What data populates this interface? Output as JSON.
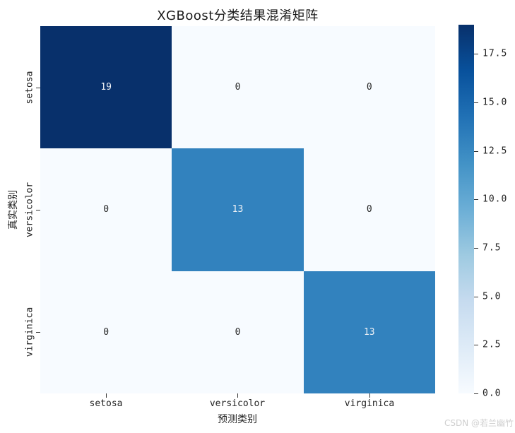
{
  "title": "XGBoost分类结果混淆矩阵",
  "watermark": "CSDN @若兰幽竹",
  "chart_data": {
    "type": "heatmap",
    "title": "XGBoost分类结果混淆矩阵",
    "xlabel": "预测类别",
    "ylabel": "真实类别",
    "x_tick_labels": [
      "setosa",
      "versicolor",
      "virginica"
    ],
    "y_tick_labels": [
      "setosa",
      "versicolor",
      "virginica"
    ],
    "matrix": [
      [
        19,
        0,
        0
      ],
      [
        0,
        13,
        0
      ],
      [
        0,
        0,
        13
      ]
    ],
    "vmin": 0,
    "vmax": 19,
    "colormap": "Blues",
    "cells": [
      {
        "value": "19",
        "bg": "#08306b",
        "fg": "#f0f2f6"
      },
      {
        "value": "0",
        "bg": "#f7fbff",
        "fg": "#262626"
      },
      {
        "value": "0",
        "bg": "#f7fbff",
        "fg": "#262626"
      },
      {
        "value": "0",
        "bg": "#f7fbff",
        "fg": "#262626"
      },
      {
        "value": "13",
        "bg": "#3282be",
        "fg": "#f0f2f6"
      },
      {
        "value": "0",
        "bg": "#f7fbff",
        "fg": "#262626"
      },
      {
        "value": "0",
        "bg": "#f7fbff",
        "fg": "#262626"
      },
      {
        "value": "0",
        "bg": "#f7fbff",
        "fg": "#262626"
      },
      {
        "value": "13",
        "bg": "#3282be",
        "fg": "#f0f2f6"
      }
    ],
    "colorbar": {
      "vmax": 19,
      "tick_values": [
        0,
        2.5,
        5,
        7.5,
        10,
        12.5,
        15,
        17.5
      ],
      "ticks": [
        "0.0",
        "2.5",
        "5.0",
        "7.5",
        "10.0",
        "12.5",
        "15.0",
        "17.5"
      ],
      "gradient_stops": [
        "#f7fbff",
        "#deebf7",
        "#c6dbef",
        "#9ecae1",
        "#6baed6",
        "#4292c6",
        "#2171b5",
        "#08519c",
        "#08306b"
      ]
    },
    "layout": {
      "row_centers": [
        124,
        297,
        470
      ],
      "col_centers": [
        150,
        336,
        523
      ],
      "legend_position": "right",
      "grid": false
    },
    "colors": {
      "cell_high": "#08306b",
      "cell_mid": "#3282be",
      "cell_low": "#f7fbff"
    }
  }
}
